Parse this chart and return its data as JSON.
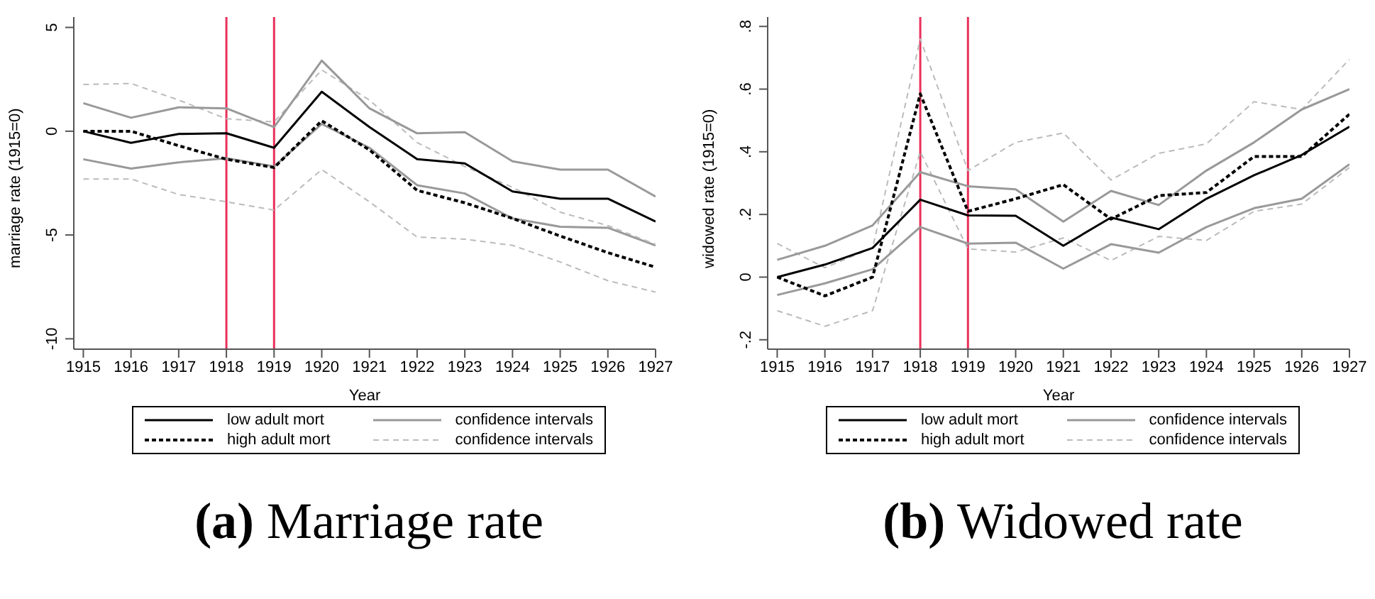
{
  "chart_data": [
    {
      "type": "line",
      "title": "(a) Marriage rate",
      "xlabel": "Year",
      "ylabel": "marriage rate (1915=0)",
      "x": [
        1915,
        1916,
        1917,
        1918,
        1919,
        1920,
        1921,
        1922,
        1923,
        1924,
        1925,
        1926,
        1927
      ],
      "xlim": [
        1914.8,
        1927
      ],
      "xticks": [
        1915,
        1916,
        1917,
        1918,
        1919,
        1920,
        1921,
        1922,
        1923,
        1924,
        1925,
        1926,
        1927
      ],
      "ylim": [
        -10.5,
        5.5
      ],
      "yticks": [
        -10,
        -5,
        0,
        5
      ],
      "grid": false,
      "legend": "bottom",
      "marker": "none",
      "series": [
        {
          "name": "low adult mort",
          "color": "#000000",
          "line_style": "solid",
          "values": [
            0,
            -0.56,
            -0.13,
            -0.1,
            -0.8,
            1.9,
            0.2,
            -1.35,
            -1.55,
            -2.9,
            -3.25,
            -3.25,
            -4.35
          ]
        },
        {
          "name": "high adult mort",
          "color": "#000000",
          "line_style": "dotted",
          "values": [
            0,
            0,
            -0.7,
            -1.35,
            -1.75,
            0.5,
            -0.9,
            -2.85,
            -3.45,
            -4.2,
            -5.05,
            -5.85,
            -6.55
          ]
        },
        {
          "name": "confidence intervals",
          "color": "#999999",
          "line_style": "solid",
          "values": [
            1.35,
            0.65,
            1.15,
            1.1,
            0.2,
            3.4,
            1.1,
            -0.1,
            -0.05,
            -1.45,
            -1.85,
            -1.85,
            -3.15
          ]
        },
        {
          "name": "confidence intervals",
          "color": "#bbbbbb",
          "line_style": "dashed",
          "values": [
            2.25,
            2.3,
            1.5,
            0.6,
            0.45,
            2.95,
            1.5,
            -0.55,
            -1.7,
            -2.7,
            -3.9,
            -4.55,
            -5.45
          ]
        },
        {
          "color": "#999999",
          "line_style": "solid",
          "values": [
            -1.35,
            -1.8,
            -1.5,
            -1.3,
            -1.7,
            0.35,
            -0.8,
            -2.6,
            -3.0,
            -4.2,
            -4.6,
            -4.65,
            -5.5
          ]
        },
        {
          "color": "#bbbbbb",
          "line_style": "dashed",
          "values": [
            -2.3,
            -2.3,
            -3.05,
            -3.4,
            -3.8,
            -1.85,
            -3.4,
            -5.1,
            -5.2,
            -5.5,
            -6.3,
            -7.2,
            -7.75
          ]
        }
      ],
      "ref_lines": [
        {
          "axis": "x",
          "value": 1918,
          "color": "#e8305a"
        },
        {
          "axis": "x",
          "value": 1919,
          "color": "#e8305a"
        }
      ]
    },
    {
      "type": "line",
      "title": "(b) Widowed rate",
      "xlabel": "Year",
      "ylabel": "widowed rate (1915=0)",
      "x": [
        1915,
        1916,
        1917,
        1918,
        1919,
        1920,
        1921,
        1922,
        1923,
        1924,
        1925,
        1926,
        1927
      ],
      "xlim": [
        1914.8,
        1927
      ],
      "xticks": [
        1915,
        1916,
        1917,
        1918,
        1919,
        1920,
        1921,
        1922,
        1923,
        1924,
        1925,
        1926,
        1927
      ],
      "ylim": [
        -0.23,
        0.83
      ],
      "yticks": [
        {
          "value": -0.2,
          "label": "-.2"
        },
        0,
        {
          "value": 0.2,
          "label": ".2"
        },
        {
          "value": 0.4,
          "label": ".4"
        },
        {
          "value": 0.6,
          "label": ".6"
        },
        {
          "value": 0.8,
          "label": ".8"
        }
      ],
      "grid": false,
      "legend": "bottom",
      "marker": "none",
      "series": [
        {
          "name": "low adult mort",
          "color": "#000000",
          "line_style": "solid",
          "values": [
            0,
            0.04,
            0.093,
            0.247,
            0.197,
            0.196,
            0.1,
            0.19,
            0.153,
            0.25,
            0.325,
            0.39,
            0.48
          ]
        },
        {
          "name": "high adult mort",
          "color": "#000000",
          "line_style": "dotted",
          "values": [
            0,
            -0.06,
            0,
            0.585,
            0.21,
            0.25,
            0.295,
            0.185,
            0.26,
            0.27,
            0.385,
            0.385,
            0.52
          ]
        },
        {
          "name": "confidence intervals",
          "color": "#999999",
          "line_style": "solid",
          "values": [
            0.055,
            0.1,
            0.165,
            0.335,
            0.29,
            0.28,
            0.177,
            0.275,
            0.23,
            0.34,
            0.43,
            0.535,
            0.6
          ]
        },
        {
          "name": "confidence intervals",
          "color": "#bbbbbb",
          "line_style": "dashed",
          "values": [
            0.107,
            0.03,
            0.093,
            0.76,
            0.34,
            0.43,
            0.46,
            0.31,
            0.395,
            0.425,
            0.56,
            0.535,
            0.695
          ]
        },
        {
          "color": "#999999",
          "line_style": "solid",
          "values": [
            -0.057,
            -0.02,
            0.025,
            0.16,
            0.107,
            0.11,
            0.027,
            0.105,
            0.078,
            0.16,
            0.22,
            0.25,
            0.36
          ]
        },
        {
          "color": "#bbbbbb",
          "line_style": "dashed",
          "values": [
            -0.107,
            -0.157,
            -0.107,
            0.4,
            0.09,
            0.08,
            0.125,
            0.053,
            0.13,
            0.117,
            0.21,
            0.233,
            0.35
          ]
        }
      ],
      "ref_lines": [
        {
          "axis": "x",
          "value": 1918,
          "color": "#e8305a"
        },
        {
          "axis": "x",
          "value": 1919,
          "color": "#e8305a"
        }
      ]
    }
  ]
}
